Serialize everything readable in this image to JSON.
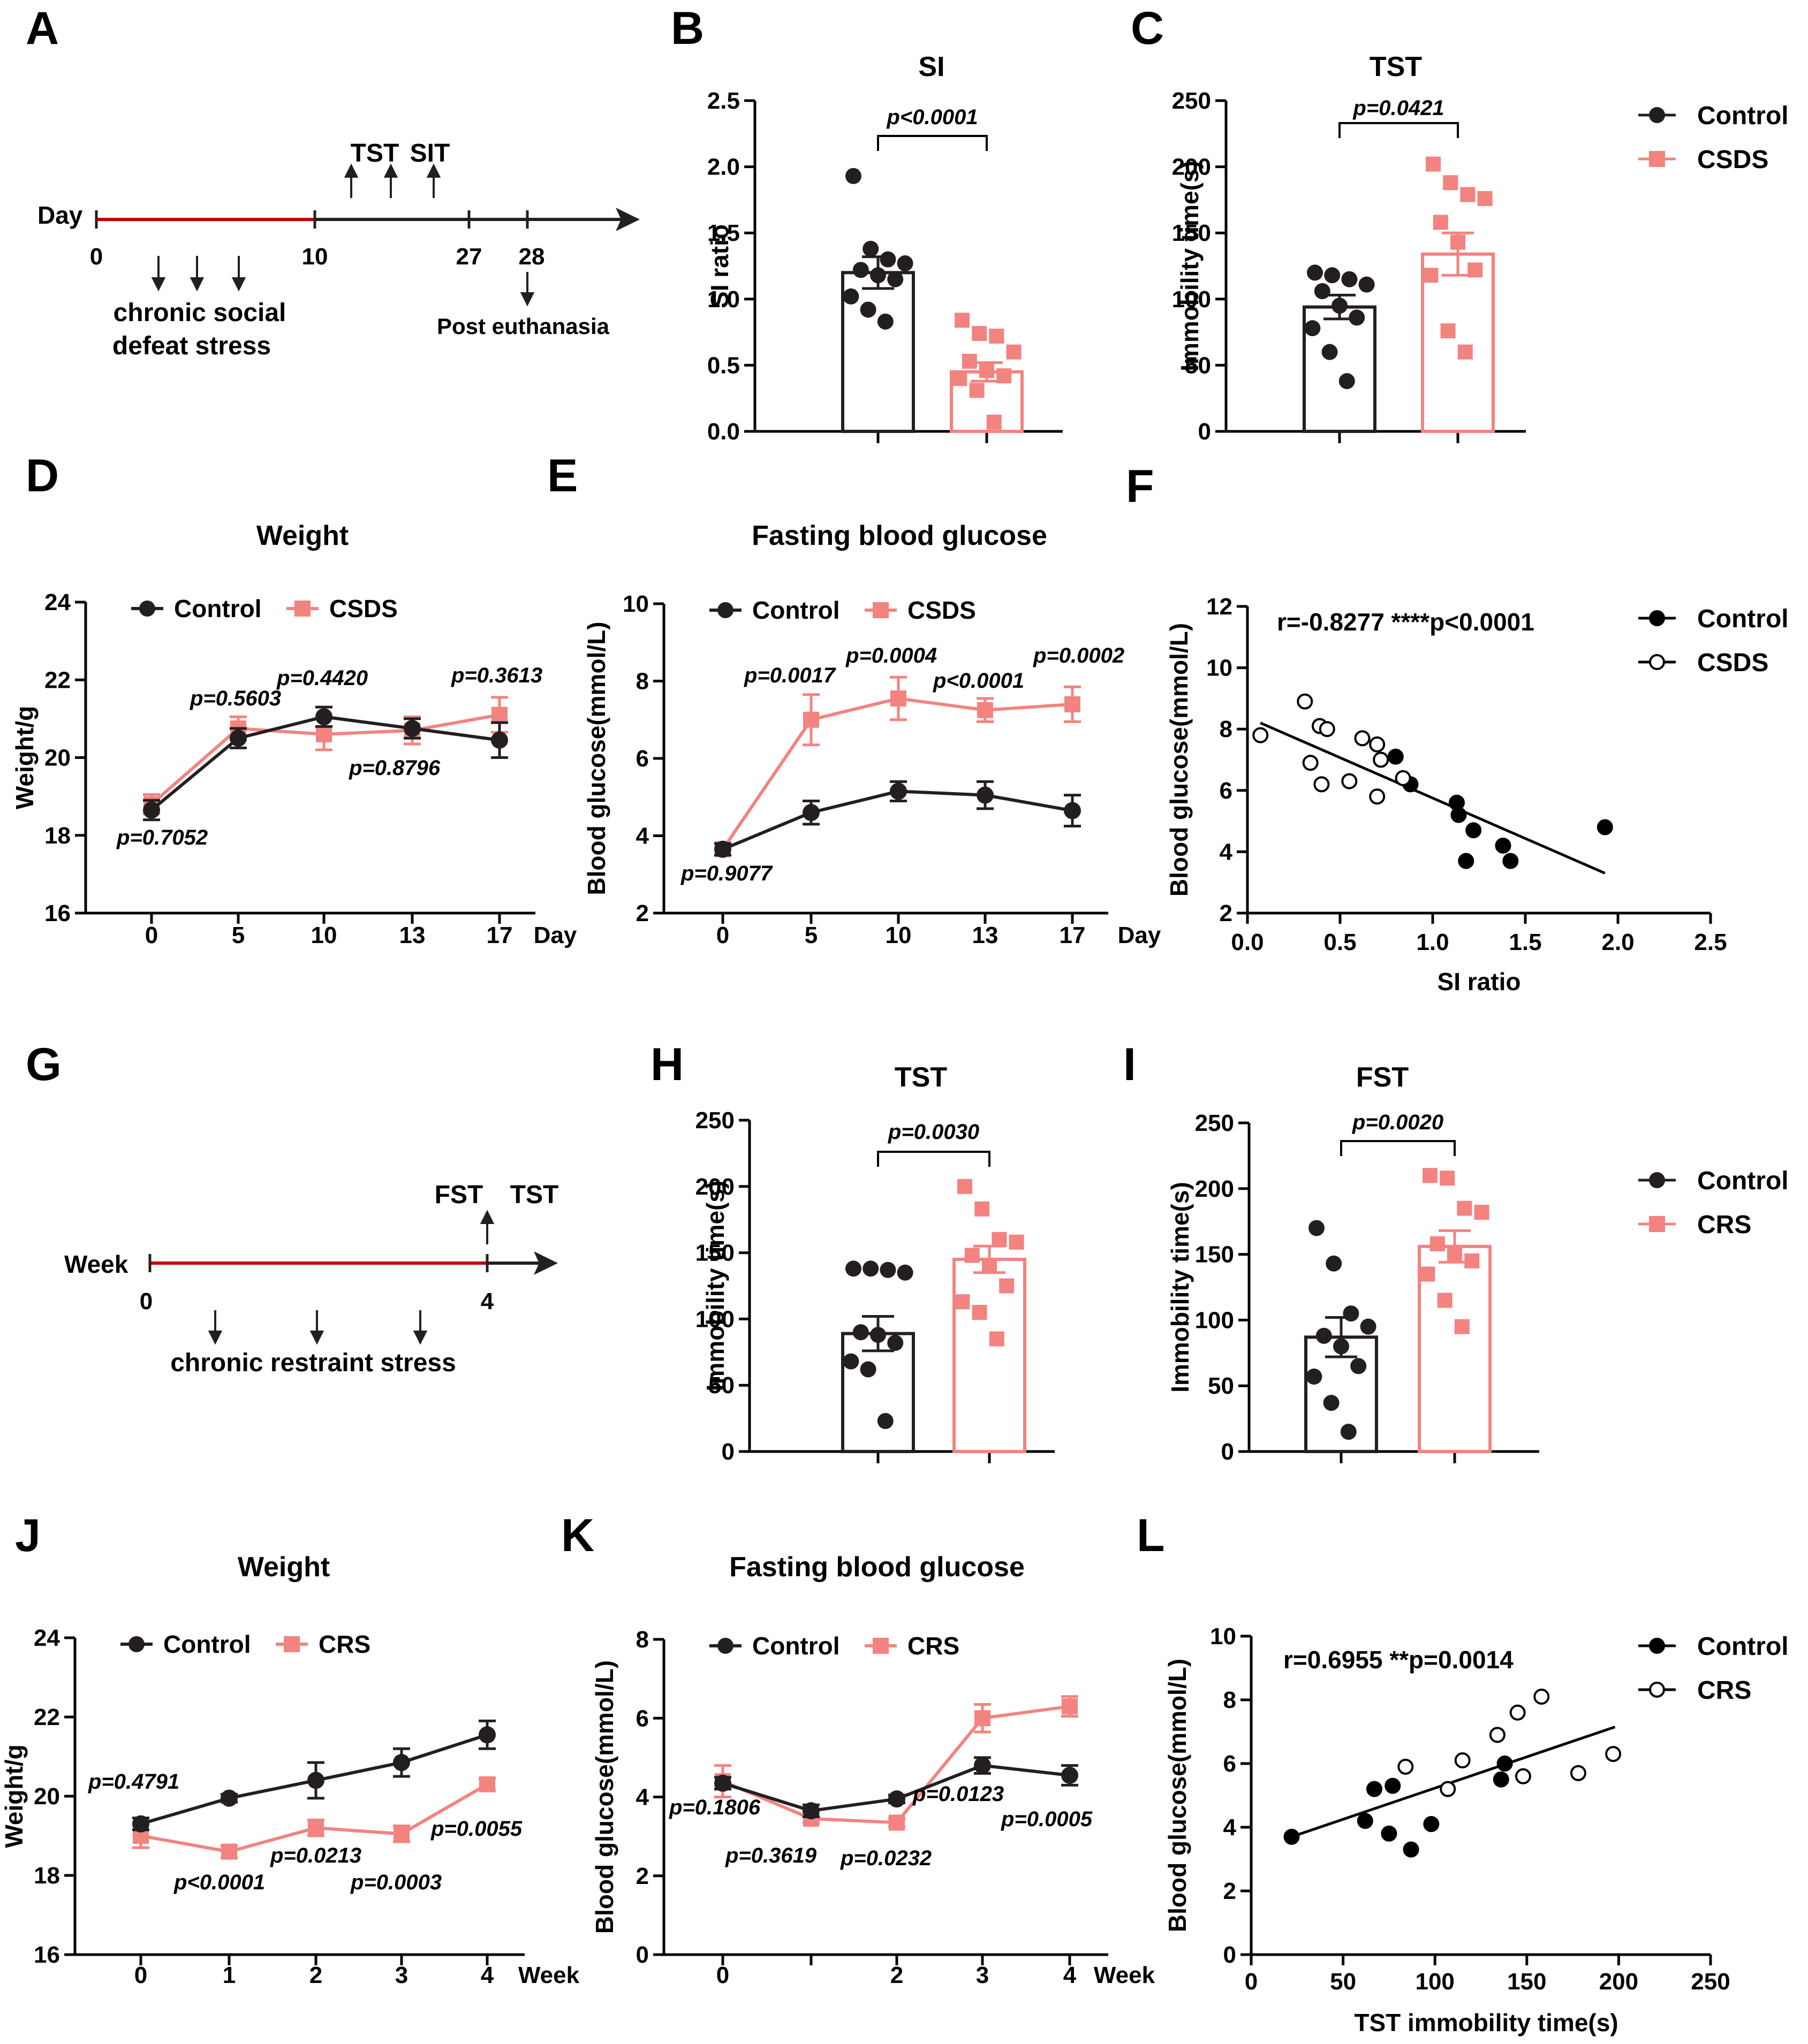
{
  "colors": {
    "control": "#231f20",
    "stress": "#f2837f",
    "timeline_red": "#c00000"
  },
  "panel_letters": [
    "A",
    "B",
    "C",
    "D",
    "E",
    "F",
    "G",
    "H",
    "I",
    "J",
    "K",
    "L"
  ],
  "timelines": [
    {
      "id": "A",
      "axis_label": "Day",
      "ticks": [
        {
          "label": "0",
          "pos": 0
        },
        {
          "label": "10",
          "pos": 10
        },
        {
          "label": "27",
          "pos": 27
        },
        {
          "label": "28",
          "pos": 28
        }
      ],
      "top_labels": [
        "TST",
        "SIT"
      ],
      "bottom_text": [
        "chronic social",
        "defeat stress"
      ],
      "post_text": "Post euthanasia"
    },
    {
      "id": "G",
      "axis_label": "Week",
      "ticks": [
        {
          "label": "0",
          "pos": 0
        },
        {
          "label": "4",
          "pos": 4
        }
      ],
      "top_labels": [
        "FST",
        "TST"
      ],
      "bottom_text": [
        "chronic restraint stress"
      ]
    }
  ],
  "legends": [
    {
      "panel": "C",
      "items": [
        {
          "label": "Control",
          "series": "control"
        },
        {
          "label": "CSDS",
          "series": "stress"
        }
      ]
    },
    {
      "panel": "F",
      "items": [
        {
          "label": "Control",
          "series": "control"
        },
        {
          "label": "CSDS",
          "series": "stress"
        }
      ]
    },
    {
      "panel": "I",
      "items": [
        {
          "label": "Control",
          "series": "control"
        },
        {
          "label": "CRS",
          "series": "stress"
        }
      ]
    },
    {
      "panel": "L",
      "items": [
        {
          "label": "Control",
          "series": "control"
        },
        {
          "label": "CRS",
          "series": "stress"
        }
      ]
    }
  ],
  "chart_data": [
    {
      "panel": "B",
      "type": "bar",
      "title": "SI",
      "ylabel": "SI ratio",
      "ylim": [
        0,
        2.5
      ],
      "yticks": [
        "0.0",
        "0.5",
        "1.0",
        "1.5",
        "2.0",
        "2.5"
      ],
      "bars": [
        {
          "series": "control",
          "mean": 1.2,
          "sem": 0.12,
          "points": [
            1.93,
            1.38,
            1.3,
            1.27,
            1.22,
            1.18,
            1.15,
            1.02,
            0.92,
            0.83
          ]
        },
        {
          "series": "stress",
          "mean": 0.45,
          "sem": 0.07,
          "points": [
            0.84,
            0.74,
            0.72,
            0.6,
            0.53,
            0.46,
            0.42,
            0.4,
            0.31,
            0.07
          ]
        }
      ],
      "sig": "p<0.0001"
    },
    {
      "panel": "C",
      "type": "bar",
      "title": "TST",
      "ylabel": "Immobility time(s)",
      "ylim": [
        0,
        250
      ],
      "yticks": [
        "0",
        "50",
        "100",
        "150",
        "200",
        "250"
      ],
      "bars": [
        {
          "series": "control",
          "mean": 94,
          "sem": 9,
          "points": [
            120,
            118,
            115,
            111,
            106,
            95,
            86,
            78,
            60,
            38
          ]
        },
        {
          "series": "stress",
          "mean": 134,
          "sem": 16,
          "points": [
            202,
            188,
            179,
            176,
            158,
            143,
            122,
            118,
            76,
            60
          ]
        }
      ],
      "sig": "p=0.0421"
    },
    {
      "panel": "D",
      "type": "line",
      "title": "Weight",
      "ylabel": "Weight/g",
      "xlabel": "Day",
      "x": [
        0,
        5,
        10,
        13,
        17
      ],
      "xticks": [
        "0",
        "5",
        "10",
        "13",
        "17"
      ],
      "ylim": [
        16,
        24
      ],
      "yticks": [
        "16",
        "18",
        "20",
        "22",
        "24"
      ],
      "series": [
        {
          "name": "Control",
          "key": "control",
          "values": [
            18.65,
            20.5,
            21.05,
            20.75,
            20.45
          ],
          "err": [
            0.25,
            0.25,
            0.25,
            0.25,
            0.45
          ]
        },
        {
          "name": "CSDS",
          "key": "stress",
          "values": [
            18.8,
            20.75,
            20.6,
            20.7,
            21.1
          ],
          "err": [
            0.25,
            0.3,
            0.4,
            0.35,
            0.45
          ]
        }
      ],
      "annotations": [
        "p=0.7052",
        "p=0.5603",
        "p=0.4420",
        "p=0.8796",
        "p=0.3613"
      ]
    },
    {
      "panel": "E",
      "type": "line",
      "title": "Fasting blood glucose",
      "ylabel": "Blood glucose(mmol/L)",
      "xlabel": "Day",
      "x": [
        0,
        5,
        10,
        13,
        17
      ],
      "xticks": [
        "0",
        "5",
        "10",
        "13",
        "17"
      ],
      "ylim": [
        2,
        10
      ],
      "yticks": [
        "2",
        "4",
        "6",
        "8",
        "10"
      ],
      "series": [
        {
          "name": "Control",
          "key": "control",
          "values": [
            3.65,
            4.6,
            5.15,
            5.05,
            4.65
          ],
          "err": [
            0.15,
            0.3,
            0.25,
            0.35,
            0.4
          ]
        },
        {
          "name": "CSDS",
          "key": "stress",
          "values": [
            3.65,
            7.0,
            7.55,
            7.25,
            7.4
          ],
          "err": [
            0.15,
            0.65,
            0.55,
            0.3,
            0.45
          ]
        }
      ],
      "annotations": [
        "p=0.9077",
        "p=0.0017",
        "p=0.0004",
        "p<0.0001",
        "p=0.0002"
      ]
    },
    {
      "panel": "F",
      "type": "scatter",
      "ylabel": "Blood glucose(mmol/L)",
      "xlabel": "SI ratio",
      "xlim": [
        0,
        2.5
      ],
      "xticks": [
        "0.0",
        "0.5",
        "1.0",
        "1.5",
        "2.0",
        "2.5"
      ],
      "ylim": [
        2,
        12
      ],
      "yticks": [
        "2",
        "4",
        "6",
        "8",
        "10",
        "12"
      ],
      "stat": "r=-0.8277 ****p<0.0001",
      "fit": [
        [
          0.07,
          8.2
        ],
        [
          1.93,
          3.3
        ]
      ],
      "series": [
        {
          "name": "Control",
          "key": "control",
          "filled": true,
          "points": [
            [
              0.8,
              7.1
            ],
            [
              0.88,
              6.2
            ],
            [
              1.13,
              5.6
            ],
            [
              1.14,
              5.2
            ],
            [
              1.22,
              4.7
            ],
            [
              1.18,
              3.7
            ],
            [
              1.38,
              4.2
            ],
            [
              1.42,
              3.7
            ],
            [
              1.93,
              4.8
            ]
          ]
        },
        {
          "name": "CSDS",
          "key": "stress",
          "filled": false,
          "points": [
            [
              0.07,
              7.8
            ],
            [
              0.31,
              8.9
            ],
            [
              0.39,
              8.1
            ],
            [
              0.43,
              8.0
            ],
            [
              0.34,
              6.9
            ],
            [
              0.4,
              6.2
            ],
            [
              0.55,
              6.3
            ],
            [
              0.62,
              7.7
            ],
            [
              0.7,
              7.5
            ],
            [
              0.72,
              7.0
            ],
            [
              0.84,
              6.4
            ],
            [
              0.7,
              5.8
            ]
          ]
        }
      ]
    },
    {
      "panel": "H",
      "type": "bar",
      "title": "TST",
      "ylabel": "Immobility time(s)",
      "ylim": [
        0,
        250
      ],
      "yticks": [
        "0",
        "50",
        "100",
        "150",
        "200",
        "250"
      ],
      "bars": [
        {
          "series": "control",
          "mean": 89,
          "sem": 13,
          "points": [
            138,
            138,
            137,
            135,
            90,
            88,
            82,
            68,
            62,
            23
          ]
        },
        {
          "series": "stress",
          "mean": 145,
          "sem": 10,
          "points": [
            200,
            183,
            160,
            158,
            148,
            140,
            125,
            113,
            105,
            85
          ]
        }
      ],
      "sig": "p=0.0030"
    },
    {
      "panel": "I",
      "type": "bar",
      "title": "FST",
      "ylabel": "Immobility time(s)",
      "ylim": [
        0,
        250
      ],
      "yticks": [
        "0",
        "50",
        "100",
        "150",
        "200",
        "250"
      ],
      "bars": [
        {
          "series": "control",
          "mean": 87,
          "sem": 15,
          "points": [
            170,
            143,
            105,
            95,
            88,
            80,
            65,
            57,
            37,
            15
          ]
        },
        {
          "series": "stress",
          "mean": 156,
          "sem": 12,
          "points": [
            210,
            208,
            185,
            182,
            158,
            150,
            145,
            135,
            115,
            95
          ]
        }
      ],
      "sig": "p=0.0020"
    },
    {
      "panel": "J",
      "type": "line",
      "title": "Weight",
      "ylabel": "Weight/g",
      "xlabel": "Week",
      "x": [
        0,
        1,
        2,
        3,
        4
      ],
      "xticks": [
        "0",
        "1",
        "2",
        "3",
        "4"
      ],
      "ylim": [
        16,
        24
      ],
      "yticks": [
        "16",
        "18",
        "20",
        "22",
        "24"
      ],
      "series": [
        {
          "name": "Control",
          "key": "control",
          "values": [
            19.3,
            19.95,
            20.4,
            20.85,
            21.55
          ],
          "err": [
            0.15,
            0.1,
            0.45,
            0.35,
            0.35
          ]
        },
        {
          "name": "CRS",
          "key": "stress",
          "values": [
            19.0,
            18.6,
            19.2,
            19.05,
            20.3
          ],
          "err": [
            0.3,
            0.15,
            0.2,
            0.2,
            0.15
          ]
        }
      ],
      "annotations": [
        "p=0.4791",
        "p<0.0001",
        "p=0.0213",
        "p=0.0003",
        "p=0.0055"
      ]
    },
    {
      "panel": "K",
      "type": "line",
      "title": "Fasting blood glucose",
      "ylabel": "Blood glucose(mmol/L)",
      "xlabel": "Week",
      "x": [
        0,
        1,
        2,
        3,
        4
      ],
      "xticks": [
        "0",
        "",
        "2",
        "3",
        "4"
      ],
      "ylim": [
        0,
        8
      ],
      "yticks": [
        "0",
        "2",
        "4",
        "6",
        "8"
      ],
      "series": [
        {
          "name": "Control",
          "key": "control",
          "values": [
            4.35,
            3.65,
            3.95,
            4.8,
            4.55
          ],
          "err": [
            0.15,
            0.15,
            0.1,
            0.2,
            0.25
          ]
        },
        {
          "name": "CRS",
          "key": "stress",
          "values": [
            4.4,
            3.45,
            3.35,
            6.0,
            6.3
          ],
          "err": [
            0.4,
            0.1,
            0.1,
            0.35,
            0.25
          ]
        }
      ],
      "annotations": [
        "p=0.1806",
        "p=0.3619",
        "p=0.0232",
        "p=0.0123",
        "p=0.0005"
      ]
    },
    {
      "panel": "L",
      "type": "scatter",
      "ylabel": "Blood glucose(mmol/L)",
      "xlabel": "TST immobility time(s)",
      "xlim": [
        0,
        250
      ],
      "xticks": [
        "0",
        "50",
        "100",
        "150",
        "200",
        "250"
      ],
      "ylim": [
        0,
        10
      ],
      "yticks": [
        "0",
        "2",
        "4",
        "6",
        "8",
        "10"
      ],
      "stat": "r=0.6955 **p=0.0014",
      "fit": [
        [
          22,
          3.7
        ],
        [
          198,
          7.15
        ]
      ],
      "series": [
        {
          "name": "Control",
          "key": "control",
          "filled": true,
          "points": [
            [
              22,
              3.7
            ],
            [
              62,
              4.2
            ],
            [
              67,
              5.2
            ],
            [
              75,
              3.8
            ],
            [
              77,
              5.3
            ],
            [
              87,
              3.3
            ],
            [
              98,
              4.1
            ],
            [
              136,
              5.5
            ],
            [
              138,
              6.0
            ]
          ]
        },
        {
          "name": "CRS",
          "key": "stress",
          "filled": false,
          "points": [
            [
              84,
              5.9
            ],
            [
              107,
              5.2
            ],
            [
              115,
              6.1
            ],
            [
              134,
              6.9
            ],
            [
              145,
              7.6
            ],
            [
              148,
              5.6
            ],
            [
              158,
              8.1
            ],
            [
              178,
              5.7
            ],
            [
              197,
              6.3
            ]
          ]
        }
      ]
    }
  ]
}
